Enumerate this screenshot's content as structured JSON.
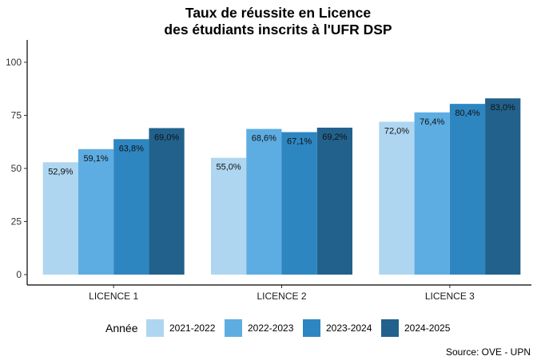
{
  "chart_data": {
    "type": "bar",
    "title": [
      "Taux de réussite en Licence",
      "des étudiants inscrits à l'UFR DSP"
    ],
    "xlabel": "",
    "ylabel": "",
    "categories": [
      "LICENCE 1",
      "LICENCE 2",
      "LICENCE 3"
    ],
    "series": [
      {
        "name": "2021-2022",
        "color": "#AED6F1",
        "values": [
          52.9,
          55.0,
          72.0
        ],
        "labels": [
          "52,9%",
          "55,0%",
          "72,0%"
        ]
      },
      {
        "name": "2022-2023",
        "color": "#5DADE2",
        "values": [
          59.1,
          68.6,
          76.4
        ],
        "labels": [
          "59,1%",
          "68,6%",
          "76,4%"
        ]
      },
      {
        "name": "2023-2024",
        "color": "#2E86C1",
        "values": [
          63.8,
          67.1,
          80.4
        ],
        "labels": [
          "63,8%",
          "67,1%",
          "80,4%"
        ]
      },
      {
        "name": "2024-2025",
        "color": "#21618C",
        "values": [
          69.0,
          69.2,
          83.0
        ],
        "labels": [
          "69,0%",
          "69,2%",
          "83,0%"
        ]
      }
    ],
    "ylim": [
      0,
      110
    ],
    "yticks": [
      0,
      25,
      50,
      75,
      100
    ],
    "grid": false,
    "legend": {
      "title": "Année",
      "position": "bottom"
    },
    "caption": "Source: OVE - UPN"
  }
}
